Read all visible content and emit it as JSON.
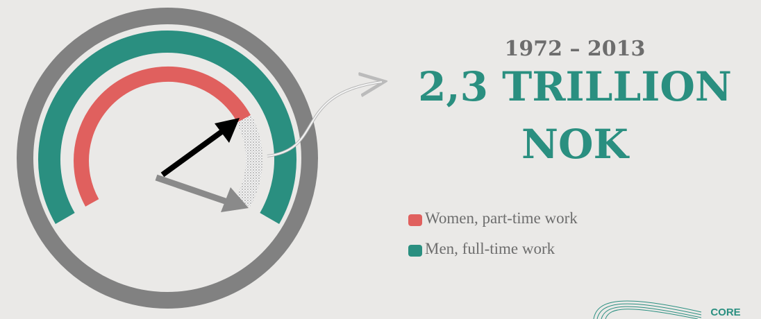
{
  "period": "1972 – 2013",
  "headline": {
    "amount": "2,3 TRILLION",
    "unit": "NOK"
  },
  "legend": [
    {
      "label": "Women, part-time work",
      "color": "#e0605e"
    },
    {
      "label": "Men, full-time work",
      "color": "#2a8f80"
    }
  ],
  "logo": "CORE"
}
